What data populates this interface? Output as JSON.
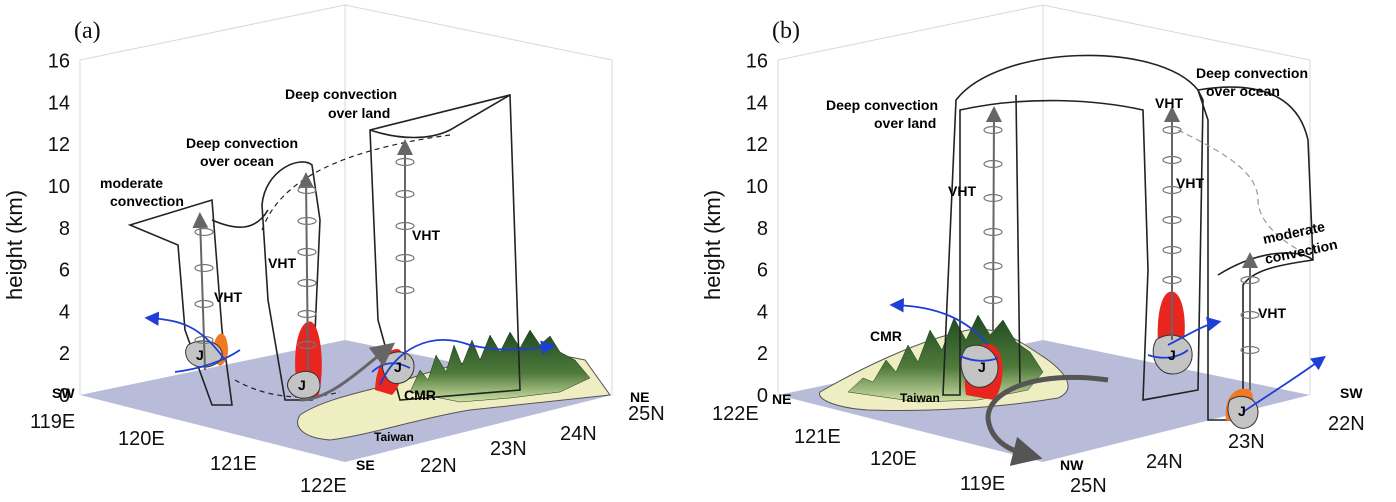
{
  "panels": [
    {
      "id": "a",
      "panel_label": "(a)",
      "y_axis_label": "height (km)",
      "y_ticks": [
        "0",
        "2",
        "4",
        "6",
        "8",
        "10",
        "12",
        "14",
        "16"
      ],
      "lon_ticks": [
        "119E",
        "120E",
        "121E",
        "122E"
      ],
      "lat_ticks": [
        "22N",
        "23N",
        "24N",
        "25N"
      ],
      "corner_labels": {
        "left": "SW",
        "right": "NE",
        "bottom": "SE"
      },
      "annotations": {
        "moderate_line1": "moderate",
        "moderate_line2": "convection",
        "deep_ocean_line1": "Deep convection",
        "deep_ocean_line2": "over ocean",
        "deep_land_line1": "Deep convection",
        "deep_land_line2": "over land",
        "vht": "VHT",
        "jet": "J",
        "cmr": "CMR",
        "island": "Taiwan"
      }
    },
    {
      "id": "b",
      "panel_label": "(b)",
      "y_axis_label": "height (km)",
      "y_ticks": [
        "0",
        "2",
        "4",
        "6",
        "8",
        "10",
        "12",
        "14",
        "16"
      ],
      "lon_ticks": [
        "122E",
        "121E",
        "120E",
        "119E"
      ],
      "lat_ticks": [
        "25N",
        "24N",
        "23N",
        "22N"
      ],
      "corner_labels": {
        "left": "NE",
        "right": "SW",
        "bottom": "NW"
      },
      "annotations": {
        "moderate_line1": "moderate",
        "moderate_line2": "convection",
        "deep_ocean_line1": "Deep convection",
        "deep_ocean_line2": "over ocean",
        "deep_land_line1": "Deep convection",
        "deep_land_line2": "over land",
        "vht": "VHT",
        "jet": "J",
        "cmr": "CMR",
        "island": "Taiwan"
      }
    }
  ],
  "colors": {
    "floor": "#b9bcd9",
    "mountain_dark": "#2f5a2a",
    "mountain_light": "#cfe0a6",
    "island": "#efeec2",
    "heating": "#e8261f",
    "orange": "#f07a22",
    "jet_fill": "#c4c4c4",
    "flow_arrow": "#1d3fd6",
    "vht_arrow": "#666666"
  }
}
